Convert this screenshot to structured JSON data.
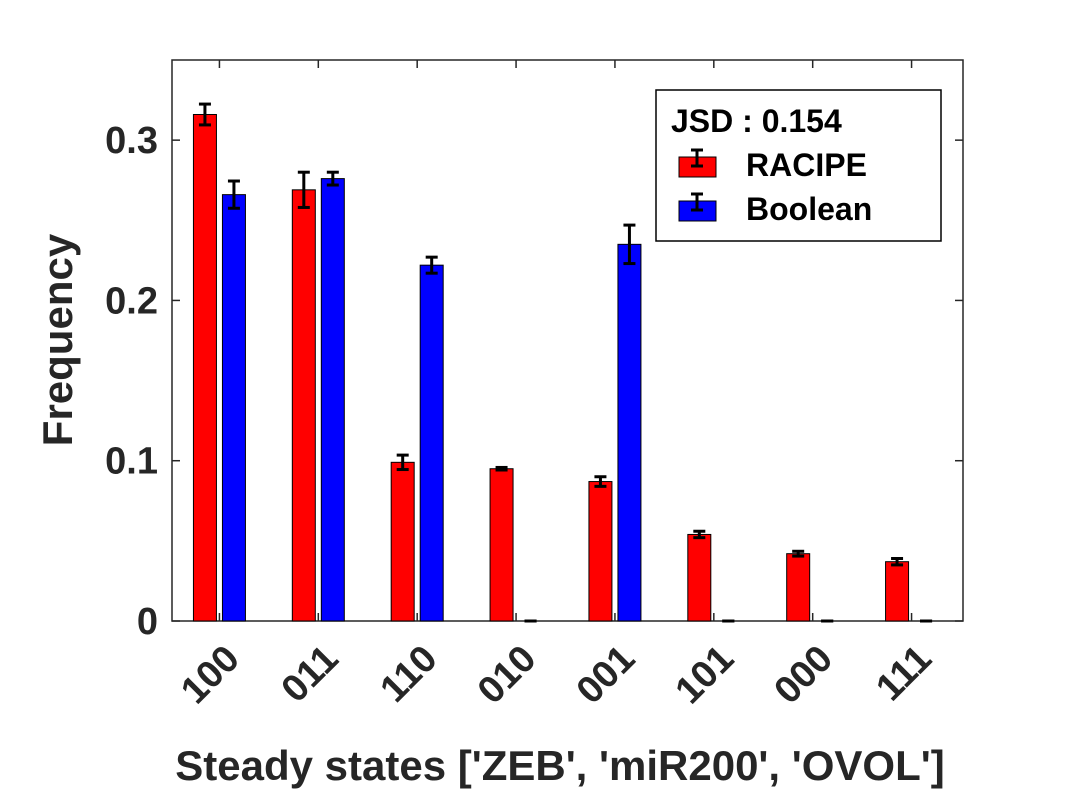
{
  "chart_data": {
    "type": "bar",
    "xlabel": "Steady states ['ZEB', 'miR200', 'OVOL']",
    "ylabel": "Frequency",
    "categories": [
      "100",
      "011",
      "110",
      "010",
      "001",
      "101",
      "000",
      "111"
    ],
    "ylim": [
      0,
      0.35
    ],
    "yticks": [
      {
        "value": 0,
        "label": "0"
      },
      {
        "value": 0.1,
        "label": "0.1"
      },
      {
        "value": 0.2,
        "label": "0.2"
      },
      {
        "value": 0.3,
        "label": "0.3"
      }
    ],
    "grid": false,
    "legend_position": "top-right",
    "legend_title": "JSD : 0.154",
    "series": [
      {
        "name": "RACIPE",
        "color": "#ff0000",
        "values": [
          0.316,
          0.269,
          0.099,
          0.095,
          0.087,
          0.054,
          0.042,
          0.037
        ],
        "errors": [
          0.0065,
          0.011,
          0.0045,
          0.0008,
          0.003,
          0.002,
          0.0015,
          0.002
        ]
      },
      {
        "name": "Boolean",
        "color": "#0000ff",
        "values": [
          0.266,
          0.276,
          0.222,
          0.0,
          0.235,
          0.0,
          0.0,
          0.0
        ],
        "errors": [
          0.0085,
          0.004,
          0.005,
          0.0,
          0.012,
          0.0,
          0.0,
          0.0
        ]
      }
    ]
  }
}
